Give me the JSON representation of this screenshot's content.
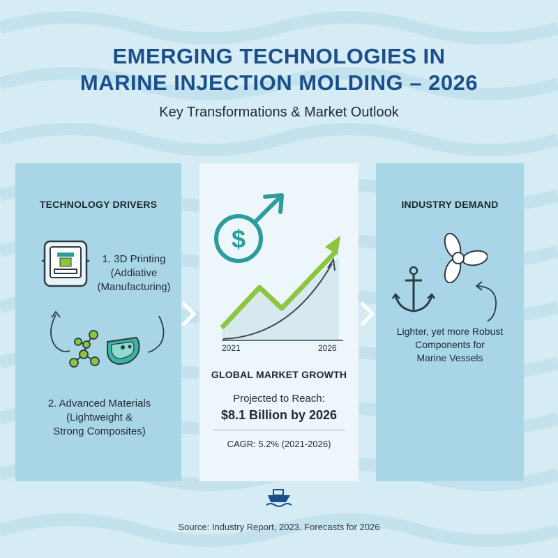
{
  "header": {
    "title_line1": "EMERGING TECHNOLOGIES IN",
    "title_line2": "MARINE INJECTION MOLDING – 2026",
    "subtitle": "Key Transformations & Market Outlook"
  },
  "left_panel": {
    "heading": "TECHNOLOGY DRIVERS",
    "item1_line1": "1. 3D Printing",
    "item1_line2": "(Addiative",
    "item1_line3": "(Manufacturing)",
    "item2_line1": "2. Advanced Materials",
    "item2_line2": "(Lightweight &",
    "item2_line3": "Strong Composites)",
    "icons": [
      "3d-printer-icon",
      "molecule-icon",
      "hull-part-icon",
      "cycle-arrows-icon"
    ]
  },
  "middle_panel": {
    "chart_start_label": "2021",
    "chart_end_label": "2026",
    "heading": "GLOBAL MARKET GROWTH",
    "projection_label": "Projected to Reach:",
    "projection_value": "$8.1 Billion by 2026",
    "cagr": "CAGR: 5.2% (2021-2026)",
    "icons": [
      "dollar-growth-icon",
      "trend-arrow-icon"
    ]
  },
  "right_panel": {
    "heading": "INDUSTRY DEMAND",
    "line1": "Lighter, yet more Robust",
    "line2": "Components for",
    "line3": "Marine Vessels",
    "icons": [
      "anchor-icon",
      "propeller-icon",
      "curved-arrow-icon"
    ]
  },
  "footer": {
    "source": "Source: Industry Report, 2023. Forecasts for 2026"
  },
  "colors": {
    "title": "#1a4f8c",
    "accent_green": "#8cc63f",
    "accent_teal": "#2a9d9c",
    "panel_blue": "#a9d6e6",
    "background": "#d6ecf4"
  }
}
